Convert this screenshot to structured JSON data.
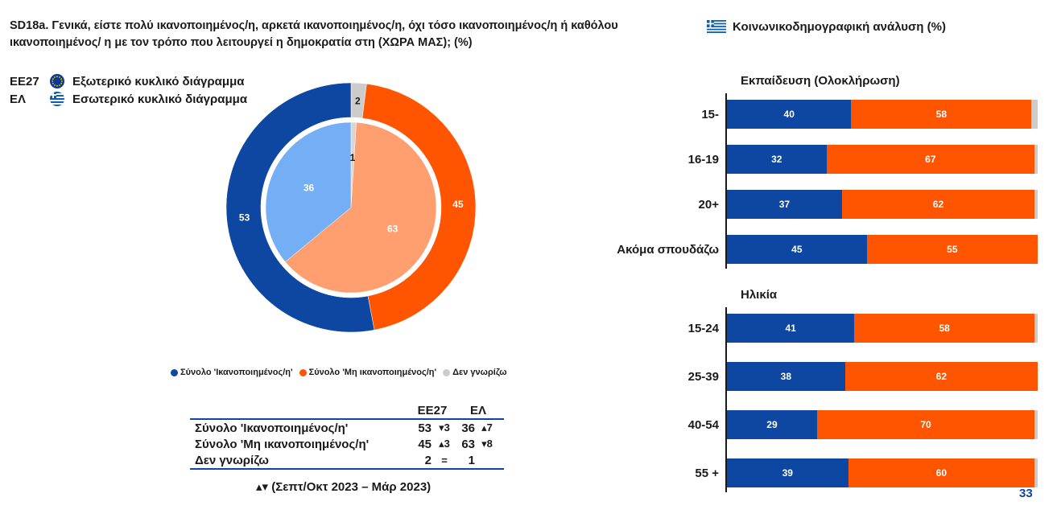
{
  "question": "SD18a. Γενικά, είστε πολύ ικανοποιημένος/η, αρκετά ικανοποιημένος/η, όχι τόσο ικανοποιημένος/η ή καθόλου ικανοποιημένος/ η με τον τρόπο που λειτουργεί η δημοκρατία στη (ΧΩΡΑ ΜΑΣ); (%)",
  "right_header": "Κοινωνικοδημογραφική ανάλυση (%)",
  "ring_legend": {
    "outer_code": "ΕΕ27",
    "outer_label": "Εξωτερικό κυκλικό διάγραμμα",
    "inner_code": "ΕΛ",
    "inner_label": "Εσωτερικό κυκλικό διάγραμμα"
  },
  "colors": {
    "satisfied": "#0d47a1",
    "not_satisfied": "#ff5500",
    "dont_know": "#cccccc",
    "satisfied_light": "#74aef5",
    "not_satisfied_light": "#ff9e6e",
    "dont_know_light": "#d6d6d6"
  },
  "pie_legend": [
    "Σύνολο 'Ικανοποιημένος/η'",
    "Σύνολο 'Μη ικανοποιημένος/η'",
    "Δεν γνωρίζω"
  ],
  "summary": {
    "col_ee": "ΕΕ27",
    "col_el": "ΕΛ",
    "rows": [
      {
        "label": "Σύνολο 'Ικανοποιημένος/η'",
        "ee": "53",
        "ee_trend": "▾3",
        "el": "36",
        "el_trend": "▴7"
      },
      {
        "label": "Σύνολο 'Μη ικανοποιημένος/η'",
        "ee": "45",
        "ee_trend": "▴3",
        "el": "63",
        "el_trend": "▾8"
      },
      {
        "label": "Δεν γνωρίζω",
        "ee": "2",
        "ee_trend": "=",
        "el": "1",
        "el_trend": ""
      }
    ]
  },
  "trend_note": "▴▾ (Σεπτ/Οκτ 2023 – Μάρ 2023)",
  "page_number": "33",
  "chart_data": [
    {
      "type": "pie",
      "ring": "outer",
      "categories": [
        "Σύνολο 'Ικανοποιημένος/η'",
        "Σύνολο 'Μη ικανοποιημένος/η'",
        "Δεν γνωρίζω"
      ],
      "values": [
        53,
        45,
        2
      ]
    },
    {
      "type": "pie",
      "ring": "inner",
      "categories": [
        "Σύνολο 'Ικανοποιημένος/η'",
        "Σύνολο 'Μη ικανοποιημένος/η'",
        "Δεν γνωρίζω"
      ],
      "values": [
        36,
        63,
        1
      ]
    },
    {
      "type": "bar",
      "orientation": "horizontal-stacked",
      "groups": [
        {
          "title": "Εκπαίδευση (Ολοκλήρωση)",
          "rows": [
            {
              "label": "15-",
              "satisfied": 40,
              "not_satisfied": 58
            },
            {
              "label": "16-19",
              "satisfied": 32,
              "not_satisfied": 67
            },
            {
              "label": "20+",
              "satisfied": 37,
              "not_satisfied": 62
            },
            {
              "label": "Ακόμα σπουδάζω",
              "satisfied": 45,
              "not_satisfied": 55
            }
          ]
        },
        {
          "title": "Ηλικία",
          "rows": [
            {
              "label": "15-24",
              "satisfied": 41,
              "not_satisfied": 58
            },
            {
              "label": "25-39",
              "satisfied": 38,
              "not_satisfied": 62
            },
            {
              "label": "40-54",
              "satisfied": 29,
              "not_satisfied": 70
            },
            {
              "label": "55 +",
              "satisfied": 39,
              "not_satisfied": 60
            }
          ]
        }
      ]
    }
  ]
}
